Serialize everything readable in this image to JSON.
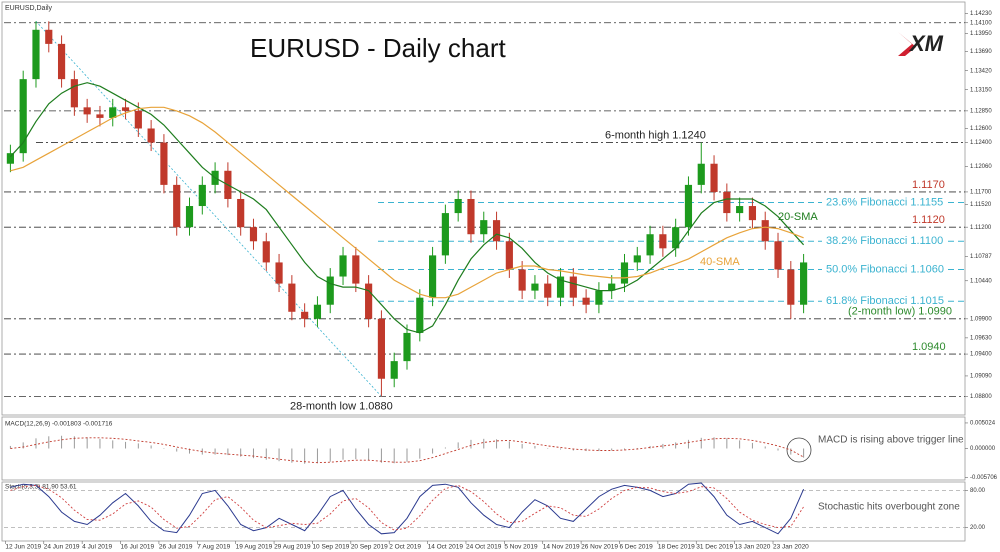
{
  "chart_data": [
    {
      "type": "candlestick",
      "title": "EURUSD - Daily chart",
      "subtitle": "EURUSD,Daily",
      "logo": "XM",
      "categories": [
        "12 Jun 2019",
        null,
        null,
        "24 Jun 2019",
        null,
        null,
        "4 Jul 2019",
        null,
        null,
        "16 Jul 2019",
        null,
        null,
        "26 Jul 2019",
        null,
        null,
        "7 Aug 2019",
        null,
        null,
        "19 Aug 2019",
        null,
        null,
        "29 Aug 2019",
        null,
        null,
        "10 Sep 2019",
        null,
        null,
        "20 Sep 2019",
        null,
        null,
        "2 Oct 2019",
        null,
        null,
        "14 Oct 2019",
        null,
        null,
        "24 Oct 2019",
        null,
        null,
        "5 Nov 2019",
        null,
        null,
        "14 Nov 2019",
        null,
        null,
        "26 Nov 2019",
        null,
        null,
        "6 Dec 2019",
        null,
        null,
        "18 Dec 2019",
        null,
        null,
        "31 Dec 2019",
        null,
        null,
        "13 Jan 2020",
        null,
        null,
        "23 Jan 2020",
        null,
        null
      ],
      "open": [
        1.121,
        1.1225,
        1.133,
        1.14,
        1.138,
        1.133,
        1.129,
        1.128,
        1.1275,
        1.129,
        1.1285,
        1.126,
        1.124,
        1.118,
        1.112,
        1.115,
        1.118,
        1.12,
        1.116,
        1.112,
        1.11,
        1.107,
        1.104,
        1.1,
        1.099,
        1.101,
        1.105,
        1.108,
        1.104,
        1.099,
        1.0905,
        1.093,
        1.097,
        1.102,
        1.108,
        1.114,
        1.116,
        1.111,
        1.113,
        1.11,
        1.106,
        1.103,
        1.104,
        1.102,
        1.105,
        1.102,
        1.101,
        1.103,
        1.104,
        1.107,
        1.108,
        1.111,
        1.109,
        1.112,
        1.118,
        1.121,
        1.117,
        1.114,
        1.115,
        1.113,
        1.11,
        1.106,
        1.101
      ],
      "high": [
        1.1237,
        1.1342,
        1.1412,
        1.1412,
        1.1392,
        1.1342,
        1.1302,
        1.1292,
        1.1302,
        1.1302,
        1.1297,
        1.1272,
        1.1252,
        1.1192,
        1.1162,
        1.1192,
        1.1212,
        1.1212,
        1.1172,
        1.1132,
        1.1112,
        1.1082,
        1.1052,
        1.1012,
        1.1022,
        1.1062,
        1.1092,
        1.1092,
        1.1052,
        1.1002,
        1.0942,
        1.0982,
        1.1032,
        1.1092,
        1.1152,
        1.1172,
        1.1172,
        1.1142,
        1.1142,
        1.1112,
        1.1072,
        1.1052,
        1.1052,
        1.1062,
        1.1062,
        1.1032,
        1.1042,
        1.1052,
        1.1082,
        1.1092,
        1.1122,
        1.1122,
        1.1132,
        1.1192,
        1.124,
        1.1222,
        1.1182,
        1.1162,
        1.1162,
        1.1142,
        1.1112,
        1.1072,
        1.1082
      ],
      "low": [
        1.1198,
        1.1213,
        1.1318,
        1.1368,
        1.1318,
        1.1278,
        1.1268,
        1.1263,
        1.1263,
        1.1273,
        1.1248,
        1.1228,
        1.1168,
        1.1108,
        1.1108,
        1.1138,
        1.1168,
        1.1148,
        1.1108,
        1.1088,
        1.1058,
        1.1028,
        1.0988,
        1.0978,
        1.0978,
        1.0998,
        1.1038,
        1.1028,
        1.0978,
        1.088,
        1.0893,
        1.0918,
        1.0958,
        1.1008,
        1.1068,
        1.1128,
        1.1098,
        1.1098,
        1.1088,
        1.1048,
        1.1018,
        1.1018,
        1.1008,
        1.1008,
        1.1008,
        1.0998,
        1.0998,
        1.1018,
        1.1028,
        1.1058,
        1.1068,
        1.1078,
        1.1078,
        1.1108,
        1.1168,
        1.1158,
        1.1128,
        1.1128,
        1.1118,
        1.1088,
        1.1048,
        1.099,
        1.0998
      ],
      "close": [
        1.1225,
        1.133,
        1.14,
        1.138,
        1.133,
        1.129,
        1.128,
        1.1275,
        1.129,
        1.1285,
        1.126,
        1.124,
        1.118,
        1.112,
        1.115,
        1.118,
        1.12,
        1.116,
        1.112,
        1.11,
        1.107,
        1.104,
        1.1,
        1.099,
        1.101,
        1.105,
        1.108,
        1.104,
        1.099,
        1.0905,
        1.093,
        1.097,
        1.102,
        1.108,
        1.114,
        1.116,
        1.111,
        1.113,
        1.11,
        1.106,
        1.103,
        1.104,
        1.102,
        1.105,
        1.102,
        1.101,
        1.103,
        1.104,
        1.107,
        1.108,
        1.111,
        1.109,
        1.112,
        1.118,
        1.121,
        1.117,
        1.114,
        1.115,
        1.113,
        1.11,
        1.106,
        1.101,
        1.107
      ],
      "colors": {
        "up": "#1d9a1d",
        "down": "#c0392b"
      },
      "series": [
        {
          "name": "20-SMA",
          "color": "#1e7d1e",
          "values": [
            1.122,
            1.124,
            1.127,
            1.1295,
            1.131,
            1.132,
            1.1325,
            1.132,
            1.131,
            1.13,
            1.129,
            1.128,
            1.1265,
            1.1245,
            1.1225,
            1.1205,
            1.119,
            1.118,
            1.117,
            1.116,
            1.1145,
            1.112,
            1.1095,
            1.107,
            1.105,
            1.104,
            1.1035,
            1.1035,
            1.103,
            1.101,
            1.099,
            1.0975,
            1.097,
            1.098,
            1.101,
            1.1045,
            1.1075,
            1.1095,
            1.111,
            1.1105,
            1.109,
            1.107,
            1.1055,
            1.1045,
            1.104,
            1.1035,
            1.103,
            1.103,
            1.1035,
            1.1045,
            1.106,
            1.1075,
            1.109,
            1.1115,
            1.114,
            1.1155,
            1.116,
            1.116,
            1.116,
            1.115,
            1.1135,
            1.1115,
            1.1095
          ]
        },
        {
          "name": "40-SMA",
          "color": "#e8a33a",
          "values": [
            1.12,
            1.1205,
            1.1215,
            1.1225,
            1.1235,
            1.1245,
            1.1255,
            1.1265,
            1.1275,
            1.1282,
            1.1288,
            1.129,
            1.129,
            1.1285,
            1.1278,
            1.1268,
            1.1255,
            1.124,
            1.1225,
            1.121,
            1.1195,
            1.118,
            1.1165,
            1.115,
            1.1135,
            1.112,
            1.1105,
            1.109,
            1.1075,
            1.106,
            1.1045,
            1.1035,
            1.1025,
            1.102,
            1.102,
            1.1025,
            1.1035,
            1.1045,
            1.1055,
            1.106,
            1.1065,
            1.1065,
            1.106,
            1.1058,
            1.1055,
            1.1052,
            1.105,
            1.1048,
            1.1048,
            1.105,
            1.1055,
            1.1062,
            1.1068,
            1.1075,
            1.1085,
            1.1095,
            1.1105,
            1.1112,
            1.1118,
            1.112,
            1.1118,
            1.1112,
            1.1105
          ]
        }
      ],
      "levels": [
        {
          "value": 1.141
        },
        {
          "value": 1.1285
        },
        {
          "value": 1.124,
          "label": "6-month high 1.1240",
          "color": "#222222"
        },
        {
          "value": 1.117,
          "label": "1.1170",
          "color": "#c0392b"
        },
        {
          "value": 1.112,
          "label": "1.1120",
          "color": "#c0392b"
        },
        {
          "value": 1.099,
          "label": "(2-month low) 1.0990",
          "color": "#2e8b2e"
        },
        {
          "value": 1.094,
          "label": "1.0940",
          "color": "#2e8b2e"
        },
        {
          "value": 1.088,
          "label": "28-month low 1.0880",
          "color": "#222222"
        }
      ],
      "fibonacci": {
        "color": "#3bb3d0",
        "levels": [
          {
            "value": 1.1155,
            "label": "23.6% Fibonacci 1.1155"
          },
          {
            "value": 1.11,
            "label": "38.2% Fibonacci 1.1100"
          },
          {
            "value": 1.106,
            "label": "50.0% Fibonacci 1.1060"
          },
          {
            "value": 1.1015,
            "label": "61.8% Fibonacci 1.1015"
          }
        ]
      },
      "ylim": [
        1.0855,
        1.1438
      ],
      "yticks": [
        {
          "value": 1.1423,
          "label": "1.14230"
        },
        {
          "value": 1.141,
          "label": "1.14100"
        },
        {
          "value": 1.1395,
          "label": "1.13950"
        },
        {
          "value": 1.1369,
          "label": "1.13690"
        },
        {
          "value": 1.1342,
          "label": "1.13420"
        },
        {
          "value": 1.1315,
          "label": "1.13150"
        },
        {
          "value": 1.1285,
          "label": "1.12850"
        },
        {
          "value": 1.126,
          "label": "1.12600"
        },
        {
          "value": 1.124,
          "label": "1.12400"
        },
        {
          "value": 1.1206,
          "label": "1.12060"
        },
        {
          "value": 1.117,
          "label": "1.11700"
        },
        {
          "value": 1.1152,
          "label": "1.11520"
        },
        {
          "value": 1.112,
          "label": "1.11200"
        },
        1.10787,
        {
          "value": 1.1044,
          "label": "1.10440"
        },
        {
          "value": 1.099,
          "label": "1.09900"
        },
        {
          "value": 1.0963,
          "label": "1.09630"
        },
        {
          "value": 1.094,
          "label": "1.09400"
        },
        {
          "value": 1.0909,
          "label": "1.09090"
        },
        {
          "value": 1.088,
          "label": "1.08800"
        }
      ]
    },
    {
      "type": "bar",
      "title": "MACD(12,26,9) -0.001803 -0.001716",
      "annotation": "MACD is rising above trigger line",
      "color": "#9a9a9a",
      "values": [
        0.0005,
        0.0012,
        0.002,
        0.0024,
        0.0025,
        0.0024,
        0.0022,
        0.0019,
        0.0016,
        0.0013,
        0.001,
        0.0006,
        0,
        -0.0006,
        -0.001,
        -0.0012,
        -0.0012,
        -0.0013,
        -0.0016,
        -0.0019,
        -0.0022,
        -0.0025,
        -0.0028,
        -0.003,
        -0.0029,
        -0.0026,
        -0.0022,
        -0.0021,
        -0.0023,
        -0.0028,
        -0.0029,
        -0.0026,
        -0.002,
        -0.001,
        0.0002,
        0.0012,
        0.0017,
        0.0019,
        0.0018,
        0.0014,
        0.0009,
        0.0005,
        0.0001,
        -0.0002,
        -0.0004,
        -0.0005,
        -0.0005,
        -0.0004,
        -0.0002,
        0.0001,
        0.0005,
        0.0009,
        0.0012,
        0.0017,
        0.0021,
        0.0022,
        0.002,
        0.0016,
        0.0011,
        0.0004,
        -0.0004,
        -0.0012,
        -0.0018
      ],
      "series": [
        {
          "color": "#c0392b",
          "values": [
            0,
            0.0003,
            0.0008,
            0.0013,
            0.0017,
            0.002,
            0.0021,
            0.0021,
            0.002,
            0.0018,
            0.0015,
            0.0012,
            0.0008,
            0.0003,
            -0.0002,
            -0.0006,
            -0.0009,
            -0.0011,
            -0.0013,
            -0.0015,
            -0.0018,
            -0.0021,
            -0.0024,
            -0.0026,
            -0.0028,
            -0.0027,
            -0.0025,
            -0.0023,
            -0.0023,
            -0.0025,
            -0.0027,
            -0.0027,
            -0.0024,
            -0.0018,
            -0.001,
            -0.0002,
            0.0006,
            0.0012,
            0.0015,
            0.0016,
            0.0013,
            0.0009,
            0.0005,
            0.0002,
            -0.0001,
            -0.0003,
            -0.0004,
            -0.0004,
            -0.0003,
            -0.0001,
            0.0002,
            0.0005,
            0.0008,
            0.0012,
            0.0016,
            0.0019,
            0.002,
            0.0019,
            0.0016,
            0.0011,
            0.0005,
            -0.0003,
            -0.0017
          ]
        }
      ],
      "ylim": [
        -0.006,
        0.0058
      ],
      "yticks": [
        0.005024,
        {
          "value": 0,
          "label": "0.000000"
        },
        -0.005706
      ]
    },
    {
      "type": "line",
      "title": "Stoch(5,3,3) 81.90 53.61",
      "annotation": "Stochastic hits overbought zone",
      "series": [
        {
          "color": "#2b3a8f",
          "values": [
            85,
            90,
            88,
            70,
            45,
            30,
            25,
            40,
            60,
            75,
            55,
            30,
            15,
            12,
            40,
            75,
            80,
            55,
            25,
            15,
            20,
            35,
            25,
            15,
            40,
            70,
            80,
            50,
            25,
            10,
            12,
            35,
            70,
            88,
            90,
            85,
            60,
            40,
            25,
            20,
            45,
            65,
            55,
            35,
            30,
            50,
            70,
            82,
            88,
            85,
            80,
            70,
            75,
            90,
            92,
            70,
            40,
            25,
            30,
            20,
            10,
            35,
            81.9
          ]
        },
        {
          "color": "#d04040",
          "values": [
            80,
            86,
            88,
            82,
            68,
            48,
            33,
            32,
            42,
            58,
            63,
            53,
            33,
            19,
            22,
            42,
            65,
            70,
            53,
            32,
            20,
            23,
            27,
            25,
            27,
            42,
            63,
            67,
            52,
            28,
            16,
            19,
            39,
            64,
            83,
            88,
            78,
            62,
            42,
            28,
            30,
            43,
            55,
            52,
            40,
            38,
            50,
            67,
            80,
            85,
            84,
            78,
            75,
            78,
            86,
            84,
            67,
            45,
            32,
            25,
            20,
            22,
            53.61
          ]
        }
      ],
      "ylim": [
        0,
        100
      ],
      "yticks": [
        {
          "value": 80,
          "label": "80.00"
        },
        {
          "value": 20,
          "label": "20.00"
        }
      ],
      "grid": true
    }
  ]
}
